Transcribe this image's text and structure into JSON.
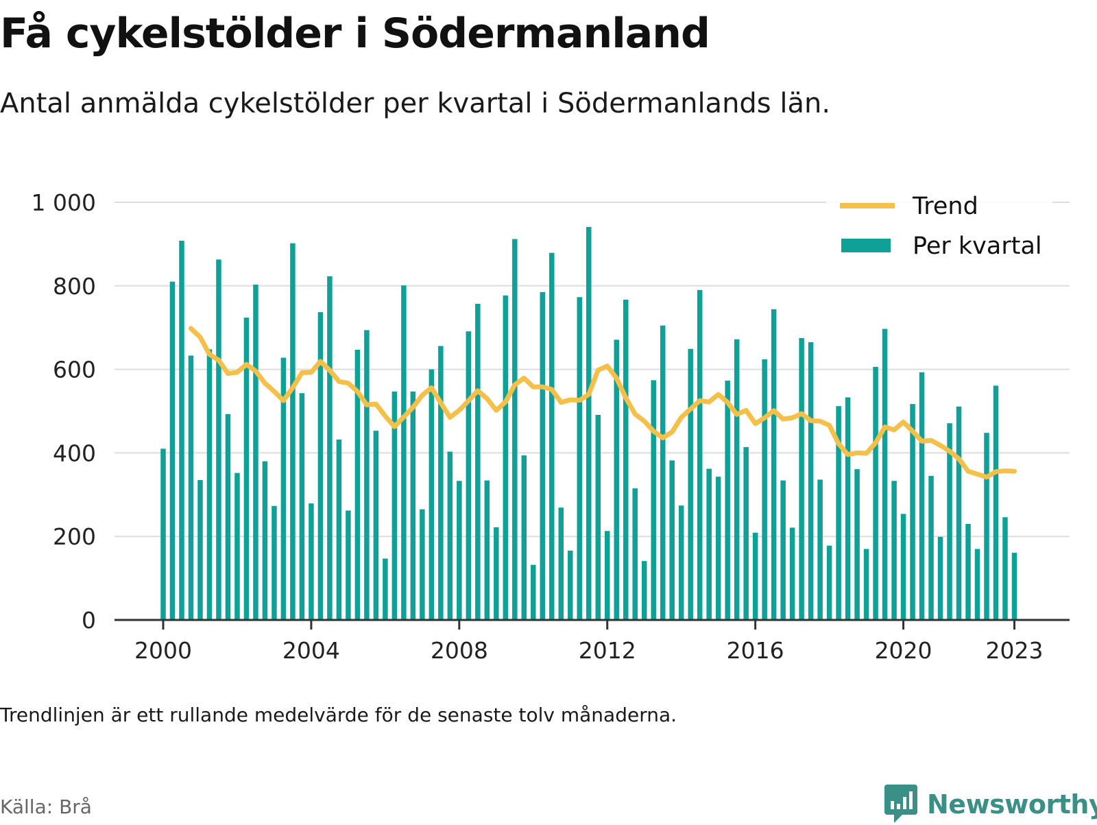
{
  "header": {
    "title": "Få cykelstölder i Södermanland",
    "subtitle": "Antal anmälda cykelstölder per kvartal i Södermanlands län."
  },
  "footer": {
    "note": "Trendlinjen är ett rullande medelvärde för de senaste tolv månaderna.",
    "source": "Källa: Brå",
    "brand": "Newsworthy"
  },
  "colors": {
    "bars": "#0fa197",
    "trend": "#f5c04a",
    "grid": "#dddddd",
    "axis": "#333333",
    "brand": "#3a8f86"
  },
  "icons": {
    "logo": "chat-bubble-bar-chart-icon"
  },
  "chart_data": {
    "type": "bar",
    "title": "Få cykelstölder i Södermanland",
    "subtitle": "Antal anmälda cykelstölder per kvartal i Södermanlands län.",
    "xlabel": "",
    "ylabel": "",
    "ylim": [
      0,
      1000
    ],
    "yticks": [
      0,
      200,
      400,
      600,
      800,
      1000
    ],
    "ytick_labels": [
      "0",
      "200",
      "400",
      "600",
      "800",
      "1 000"
    ],
    "x_range": [
      2000,
      2023.25
    ],
    "xticks": [
      2000,
      2004,
      2008,
      2012,
      2016,
      2020,
      2023
    ],
    "xtick_labels": [
      "2000",
      "2004",
      "2008",
      "2012",
      "2016",
      "2020",
      "2023"
    ],
    "grid": true,
    "legend": {
      "position": "top-right",
      "entries": [
        "Trend",
        "Per kvartal"
      ]
    },
    "quarters": [
      "2000 Q1",
      "2000 Q2",
      "2000 Q3",
      "2000 Q4",
      "2001 Q1",
      "2001 Q2",
      "2001 Q3",
      "2001 Q4",
      "2002 Q1",
      "2002 Q2",
      "2002 Q3",
      "2002 Q4",
      "2003 Q1",
      "2003 Q2",
      "2003 Q3",
      "2003 Q4",
      "2004 Q1",
      "2004 Q2",
      "2004 Q3",
      "2004 Q4",
      "2005 Q1",
      "2005 Q2",
      "2005 Q3",
      "2005 Q4",
      "2006 Q1",
      "2006 Q2",
      "2006 Q3",
      "2006 Q4",
      "2007 Q1",
      "2007 Q2",
      "2007 Q3",
      "2007 Q4",
      "2008 Q1",
      "2008 Q2",
      "2008 Q3",
      "2008 Q4",
      "2009 Q1",
      "2009 Q2",
      "2009 Q3",
      "2009 Q4",
      "2010 Q1",
      "2010 Q2",
      "2010 Q3",
      "2010 Q4",
      "2011 Q1",
      "2011 Q2",
      "2011 Q3",
      "2011 Q4",
      "2012 Q1",
      "2012 Q2",
      "2012 Q3",
      "2012 Q4",
      "2013 Q1",
      "2013 Q2",
      "2013 Q3",
      "2013 Q4",
      "2014 Q1",
      "2014 Q2",
      "2014 Q3",
      "2014 Q4",
      "2015 Q1",
      "2015 Q2",
      "2015 Q3",
      "2015 Q4",
      "2016 Q1",
      "2016 Q2",
      "2016 Q3",
      "2016 Q4",
      "2017 Q1",
      "2017 Q2",
      "2017 Q3",
      "2017 Q4",
      "2018 Q1",
      "2018 Q2",
      "2018 Q3",
      "2018 Q4",
      "2019 Q1",
      "2019 Q2",
      "2019 Q3",
      "2019 Q4",
      "2020 Q1",
      "2020 Q2",
      "2020 Q3",
      "2020 Q4",
      "2021 Q1",
      "2021 Q2",
      "2021 Q3",
      "2021 Q4",
      "2022 Q1",
      "2022 Q2",
      "2022 Q3",
      "2022 Q4",
      "2023 Q1"
    ],
    "series": [
      {
        "name": "Per kvartal",
        "type": "bar",
        "values": [
          410,
          810,
          908,
          633,
          335,
          648,
          863,
          493,
          352,
          724,
          803,
          380,
          273,
          628,
          902,
          543,
          279,
          737,
          823,
          432,
          262,
          647,
          694,
          453,
          147,
          547,
          801,
          547,
          265,
          600,
          656,
          403,
          333,
          691,
          757,
          334,
          222,
          777,
          912,
          394,
          132,
          785,
          879,
          269,
          166,
          773,
          941,
          491,
          213,
          671,
          767,
          315,
          141,
          574,
          705,
          382,
          274,
          649,
          790,
          362,
          343,
          573,
          672,
          414,
          209,
          624,
          744,
          334,
          221,
          675,
          665,
          336,
          178,
          512,
          533,
          361,
          170,
          606,
          697,
          333,
          254,
          517,
          593,
          345,
          199,
          471,
          511,
          230,
          170,
          448,
          561,
          246,
          161
        ]
      },
      {
        "name": "Trend",
        "type": "line",
        "start_quarter": "2000 Q4",
        "values": [
          698,
          677,
          636,
          622,
          590,
          593,
          612,
          596,
          567,
          547,
          525,
          556,
          592,
          593,
          619,
          598,
          571,
          567,
          547,
          515,
          517,
          488,
          463,
          486,
          509,
          538,
          556,
          520,
          485,
          502,
          525,
          549,
          530,
          502,
          522,
          563,
          579,
          558,
          558,
          552,
          521,
          527,
          526,
          540,
          598,
          608,
          579,
          532,
          493,
          476,
          452,
          436,
          450,
          485,
          505,
          525,
          522,
          540,
          521,
          492,
          502,
          470,
          484,
          501,
          481,
          484,
          494,
          477,
          476,
          466,
          422,
          396,
          400,
          399,
          424,
          462,
          455,
          474,
          452,
          428,
          430,
          418,
          404,
          386,
          356,
          349,
          342,
          355,
          357,
          356
        ]
      }
    ]
  }
}
